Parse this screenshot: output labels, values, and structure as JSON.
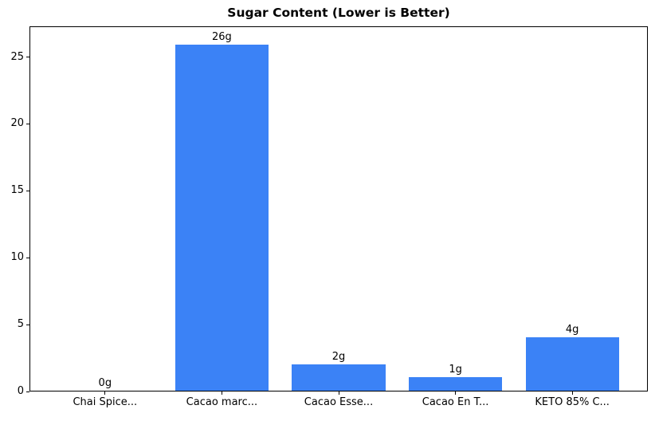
{
  "figure": {
    "title": "Sugar Content (Lower is Better)",
    "background": "#ffffff"
  },
  "chart_data": {
    "type": "bar",
    "title": "Sugar Content (Lower is Better)",
    "categories": [
      "Chai Spice...",
      "Cacao marc...",
      "Cacao Esse...",
      "Cacao En T...",
      "KETO 85% C..."
    ],
    "values": [
      0,
      26,
      2,
      1,
      4
    ],
    "bar_labels": [
      "0g",
      "26g",
      "2g",
      "1g",
      "4g"
    ],
    "xlabel": "",
    "ylabel": "",
    "ylim": [
      0,
      27.3
    ],
    "yticks": [
      0,
      5,
      10,
      15,
      20,
      25
    ],
    "grid": false,
    "legend_position": "none",
    "bar_color": "#3b82f6",
    "axis_color": "#000000",
    "text_color": "#000000"
  }
}
